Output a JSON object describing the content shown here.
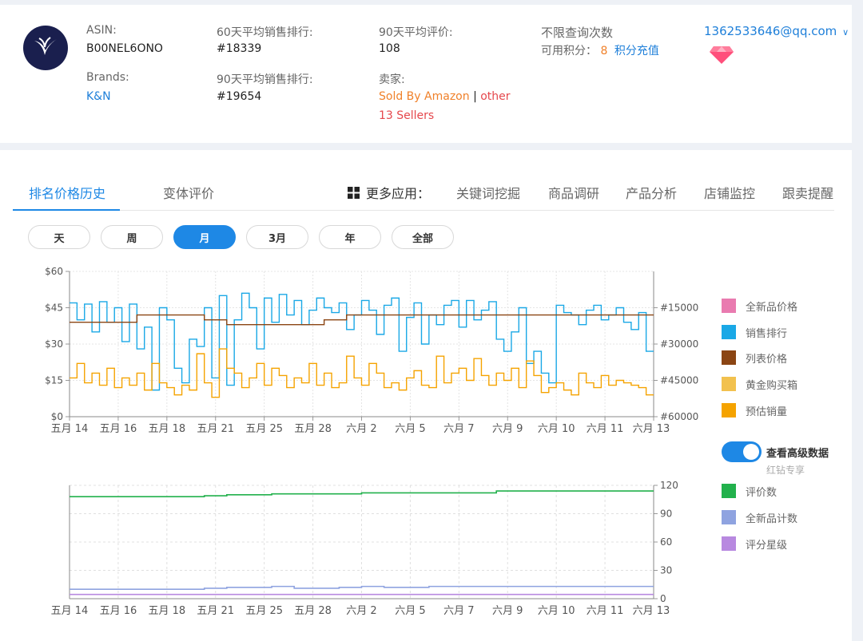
{
  "header": {
    "asin_label": "ASIN:",
    "asin": "B00NEL6ONO",
    "brands_label": "Brands:",
    "brand": "K&N",
    "rank60_label": "60天平均销售排行:",
    "rank60": "#18339",
    "rank90_label": "90天平均销售排行:",
    "rank90": "#19654",
    "review90_label": "90天平均评价:",
    "review90": "108",
    "seller_label": "卖家:",
    "seller_amazon": "Sold By Amazon",
    "seller_sep": "|",
    "seller_other": "other",
    "seller_count": "13 Sellers",
    "query_limit": "不限查询次数",
    "points_label": "可用积分：",
    "points_value": "8",
    "recharge": "积分充值",
    "user_email": "1362533646@qq.com",
    "dropdown_glyph": "∨"
  },
  "tabs": {
    "rank_history": "排名价格历史",
    "variant_review": "变体评价",
    "more_apps": "更多应用：",
    "keyword_mining": "关键词挖掘",
    "product_research": "商品调研",
    "product_analysis": "产品分析",
    "shop_monitor": "店铺监控",
    "follow_sell": "跟卖提醒"
  },
  "ranges": [
    "天",
    "周",
    "月",
    "3月",
    "年",
    "全部"
  ],
  "active_range": "月",
  "legend_top": [
    {
      "label": "全新品价格",
      "color": "#e97bb0"
    },
    {
      "label": "销售排行",
      "color": "#1aa8e6"
    },
    {
      "label": "列表价格",
      "color": "#8b4513"
    },
    {
      "label": "黄金购买箱",
      "color": "#f2c14e"
    },
    {
      "label": "预估销量",
      "color": "#f5a300"
    }
  ],
  "advanced": {
    "label": "查看高级数据",
    "sub": "红钻专享"
  },
  "legend_bottom": [
    {
      "label": "评价数",
      "color": "#22b14c"
    },
    {
      "label": "全新品计数",
      "color": "#8fa3e0"
    },
    {
      "label": "评分星级",
      "color": "#b889e0"
    }
  ],
  "chart_data": [
    {
      "type": "line",
      "x_ticks": [
        "五月 14",
        "五月 16",
        "五月 18",
        "五月 21",
        "五月 25",
        "五月 28",
        "六月 2",
        "六月 5",
        "六月 7",
        "六月 9",
        "六月 10",
        "六月 11",
        "六月 13"
      ],
      "y_left_ticks": [
        "$0",
        "$15",
        "$30",
        "$45",
        "$60"
      ],
      "y_left_range": [
        0,
        60
      ],
      "y_right_ticks": [
        "#15000",
        "#30000",
        "#45000",
        "#60000"
      ],
      "y_right_range": [
        0,
        60000
      ],
      "series": [
        {
          "name": "销售排行",
          "color": "#1aa8e6",
          "axis": "right",
          "values": [
            13000,
            20000,
            13500,
            25000,
            12500,
            21000,
            15000,
            29000,
            13500,
            32000,
            23000,
            49000,
            15000,
            20000,
            40000,
            46000,
            28000,
            31000,
            15000,
            44000,
            10000,
            47000,
            20000,
            9000,
            15000,
            32000,
            11000,
            21000,
            9500,
            18000,
            12000,
            22000,
            16000,
            11000,
            15000,
            17000,
            13000,
            24000,
            18000,
            12000,
            16000,
            26000,
            14000,
            11000,
            33000,
            19000,
            13000,
            30000,
            18000,
            22000,
            14000,
            12000,
            23000,
            12000,
            20000,
            16000,
            12500,
            28000,
            33000,
            25000,
            15000,
            38000,
            33000,
            42000,
            46000,
            14000,
            17000,
            18000,
            22000,
            16000,
            14000,
            20000,
            18000,
            15000,
            21000,
            24000,
            17000,
            33000
          ]
        },
        {
          "name": "列表价格",
          "color": "#8b4513",
          "axis": "left",
          "values": [
            39,
            39,
            39,
            39,
            39,
            39,
            39,
            39,
            39,
            42,
            42,
            42,
            42,
            42,
            42,
            42,
            42,
            42,
            40,
            40,
            40,
            38,
            38,
            38,
            38,
            38,
            38,
            38,
            38,
            38,
            38,
            38,
            38,
            38,
            40,
            40,
            40,
            42,
            42,
            42,
            42,
            42,
            42,
            42,
            42,
            42,
            42,
            42,
            42,
            42,
            42,
            42,
            42,
            42,
            42,
            42,
            42,
            42,
            42,
            42,
            42,
            42,
            42,
            42,
            42,
            42,
            42,
            42,
            42,
            42,
            42,
            42,
            42,
            42,
            42,
            42,
            42,
            42
          ]
        },
        {
          "name": "黄金购买箱",
          "color": "#f5a300",
          "axis": "left",
          "values": [
            16,
            22,
            14,
            18,
            13,
            20,
            12,
            16,
            13,
            18,
            11,
            22,
            14,
            12,
            9,
            13,
            11,
            26,
            14,
            8,
            28,
            20,
            18,
            12,
            16,
            22,
            13,
            20,
            17,
            12,
            16,
            14,
            22,
            13,
            18,
            12,
            14,
            25,
            16,
            13,
            22,
            18,
            12,
            14,
            11,
            16,
            19,
            13,
            12,
            25,
            14,
            18,
            20,
            15,
            24,
            17,
            13,
            18,
            15,
            20,
            12,
            23,
            17,
            10,
            12,
            14,
            11,
            9,
            18,
            14,
            12,
            17,
            13,
            15,
            14,
            13,
            12,
            9
          ]
        }
      ]
    },
    {
      "type": "line",
      "x_ticks": [
        "五月 14",
        "五月 16",
        "五月 18",
        "五月 21",
        "五月 25",
        "五月 28",
        "六月 2",
        "六月 5",
        "六月 7",
        "六月 9",
        "六月 10",
        "六月 11",
        "六月 13"
      ],
      "y_right_ticks": [
        "0",
        "30",
        "60",
        "90",
        "120"
      ],
      "y_range": [
        0,
        120
      ],
      "series": [
        {
          "name": "评价数",
          "color": "#22b14c",
          "values": [
            108,
            108,
            108,
            108,
            108,
            108,
            109,
            110,
            110,
            111,
            111,
            111,
            111,
            112,
            112,
            112,
            112,
            112,
            112,
            114,
            114,
            114,
            114,
            114,
            114,
            114
          ]
        },
        {
          "name": "全新品计数",
          "color": "#8fa3e0",
          "values": [
            10,
            10,
            10,
            10,
            10,
            10,
            11,
            12,
            12,
            13,
            11,
            11,
            12,
            13,
            12,
            12,
            13,
            13,
            13,
            13,
            13,
            13,
            13,
            13,
            13,
            13
          ]
        },
        {
          "name": "评分星级",
          "color": "#b889e0",
          "values": [
            4.5,
            4.5,
            4.5,
            4.5,
            4.5,
            4.5,
            4.5,
            4.5,
            4.5,
            4.5,
            4.5,
            4.5,
            4.5,
            4.5,
            4.5,
            4.5,
            4.5,
            4.5,
            4.5,
            4.5,
            4.5,
            4.5,
            4.5,
            4.5,
            4.5,
            4.5
          ]
        }
      ]
    }
  ]
}
